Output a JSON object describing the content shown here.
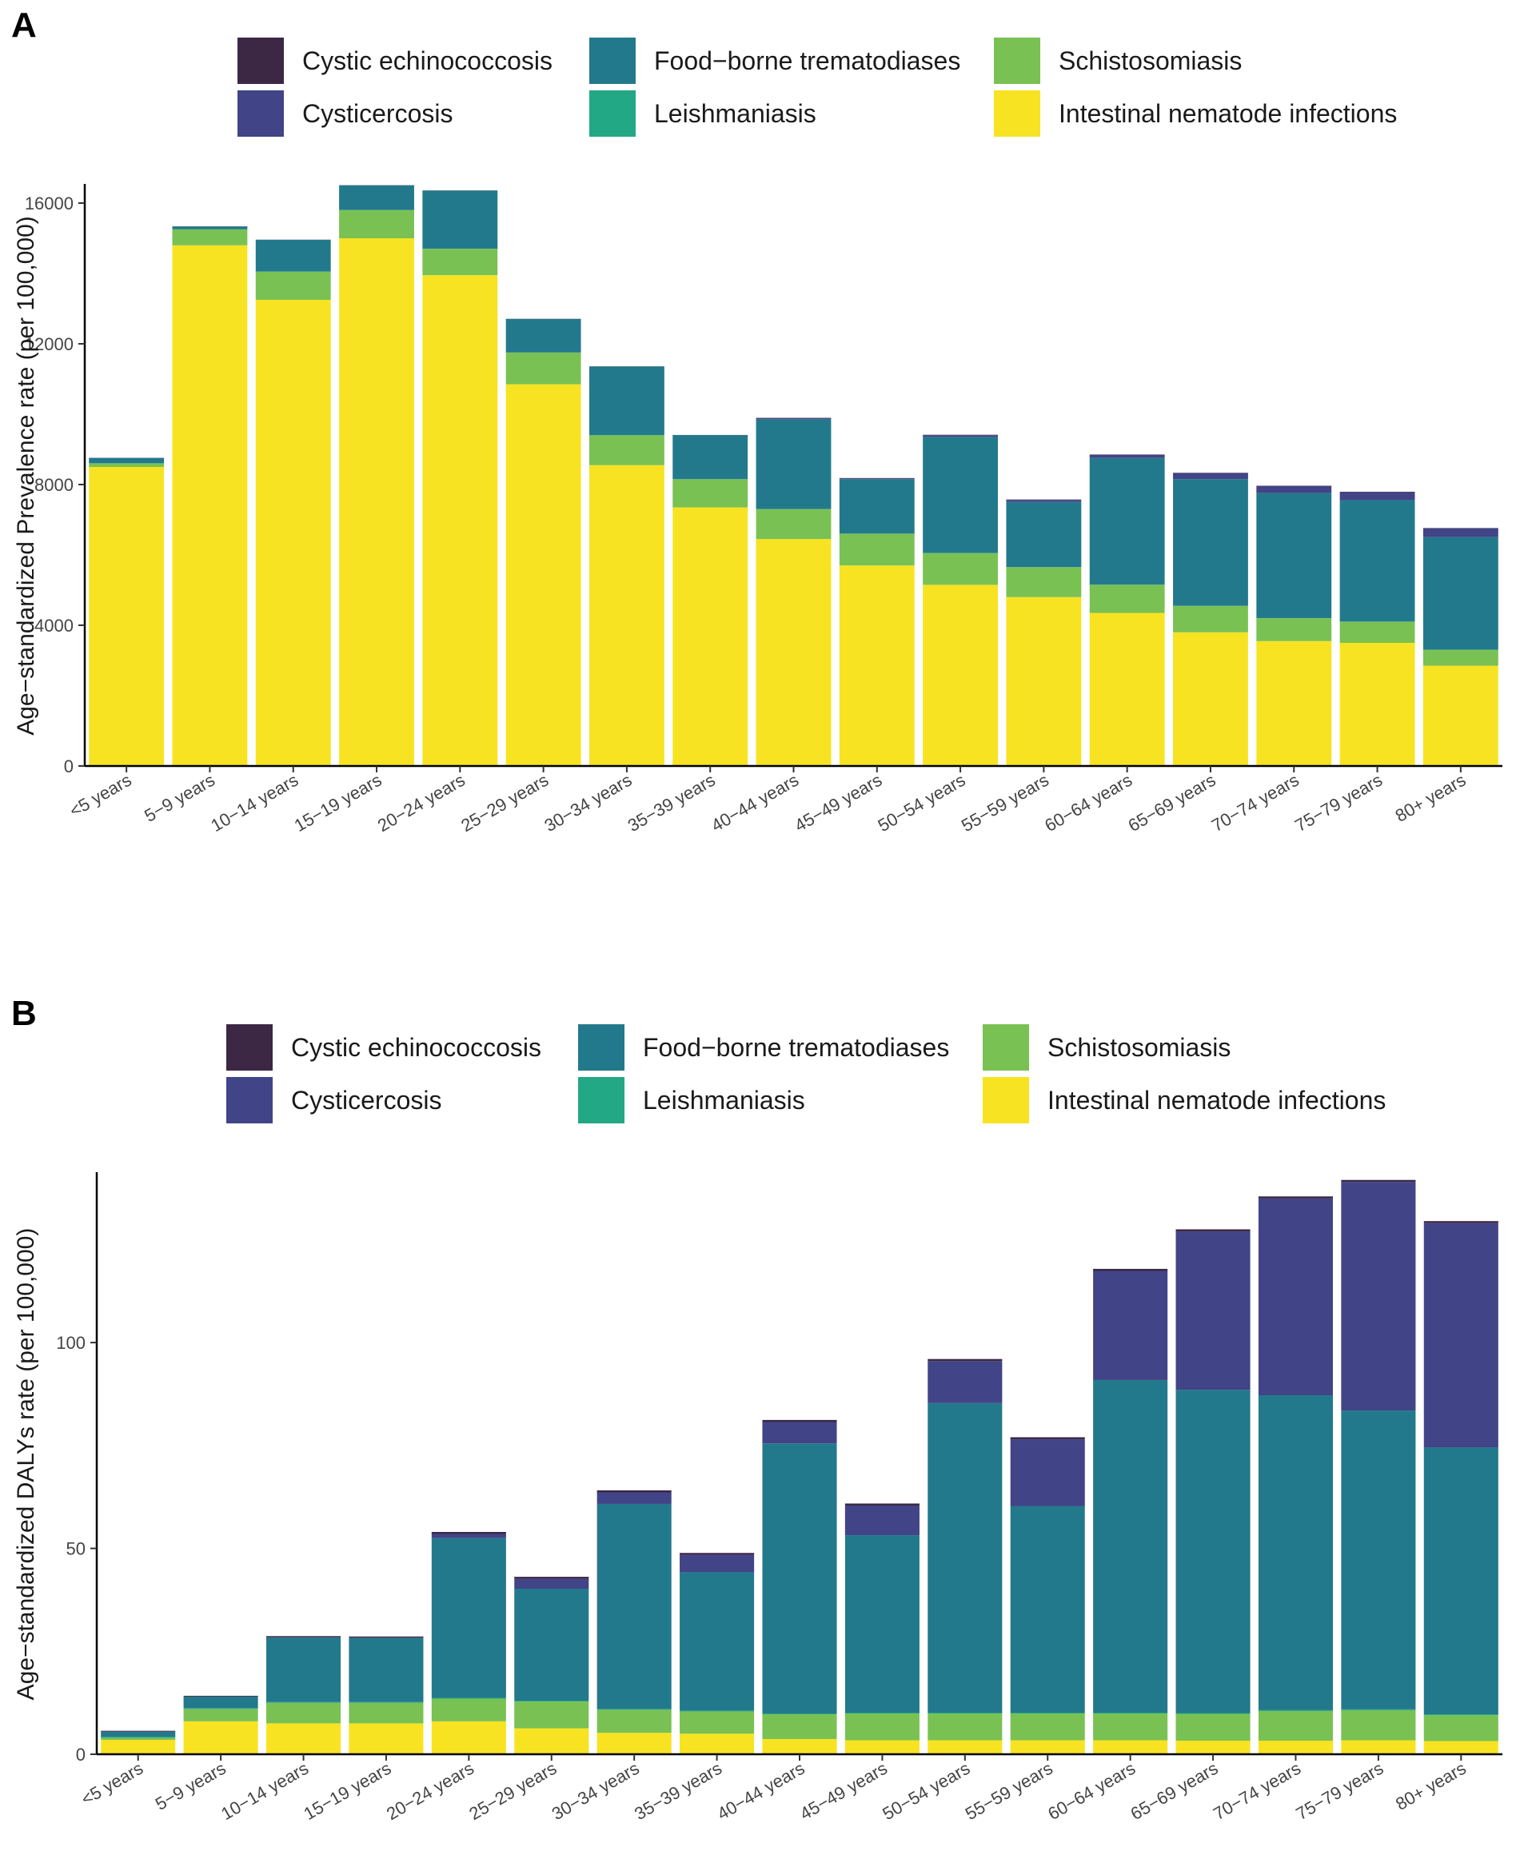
{
  "panels": [
    {
      "label": "A",
      "legend": [
        {
          "name": "Cystic echinococcosis",
          "color": "#3c2745"
        },
        {
          "name": "Cysticercosis",
          "color": "#414487"
        },
        {
          "name": "Food−borne trematodiases",
          "color": "#23798c"
        },
        {
          "name": "Leishmaniasis",
          "color": "#22a884"
        },
        {
          "name": "Schistosomiasis",
          "color": "#7ac153"
        },
        {
          "name": "Intestinal nematode infections",
          "color": "#f7e322"
        }
      ]
    },
    {
      "label": "B",
      "legend": [
        {
          "name": "Cystic echinococcosis",
          "color": "#3c2745"
        },
        {
          "name": "Cysticercosis",
          "color": "#414487"
        },
        {
          "name": "Food−borne trematodiases",
          "color": "#23798c"
        },
        {
          "name": "Leishmaniasis",
          "color": "#22a884"
        },
        {
          "name": "Schistosomiasis",
          "color": "#7ac153"
        },
        {
          "name": "Intestinal nematode infections",
          "color": "#f7e322"
        }
      ]
    }
  ],
  "chart_data": [
    {
      "type": "bar",
      "stacked": true,
      "panel": "A",
      "title": "",
      "xlabel": "",
      "ylabel": "Age−standardized Prevalence rate (per 100,000)",
      "ylim": [
        0,
        16500
      ],
      "yticks": [
        0,
        4000,
        8000,
        12000,
        16000
      ],
      "categories": [
        "<5 years",
        "5−9 years",
        "10−14 years",
        "15−19 years",
        "20−24 years",
        "25−29 years",
        "30−34 years",
        "35−39 years",
        "40−44 years",
        "45−49 years",
        "50−54 years",
        "55−59 years",
        "60−64 years",
        "65−69 years",
        "70−74 years",
        "75−79 years",
        "80+ years"
      ],
      "series": [
        {
          "name": "Intestinal nematode infections",
          "color": "#f7e322",
          "values": [
            8500,
            14800,
            13250,
            15000,
            13950,
            10850,
            8550,
            7350,
            6450,
            5700,
            5150,
            4800,
            4350,
            3800,
            3550,
            3500,
            2850
          ]
        },
        {
          "name": "Schistosomiasis",
          "color": "#7ac153",
          "values": [
            100,
            450,
            800,
            800,
            750,
            900,
            850,
            800,
            850,
            900,
            900,
            850,
            800,
            750,
            650,
            600,
            450
          ]
        },
        {
          "name": "Leishmaniasis",
          "color": "#22a884",
          "values": [
            5,
            5,
            5,
            5,
            5,
            5,
            5,
            5,
            5,
            5,
            5,
            5,
            5,
            5,
            5,
            5,
            5
          ]
        },
        {
          "name": "Food−borne trematodiases",
          "color": "#23798c",
          "values": [
            150,
            80,
            900,
            700,
            1650,
            950,
            1950,
            1250,
            2550,
            1550,
            3300,
            1850,
            3600,
            3600,
            3550,
            3450,
            3200
          ]
        },
        {
          "name": "Cysticercosis",
          "color": "#414487",
          "values": [
            0,
            0,
            0,
            0,
            0,
            0,
            0,
            0,
            30,
            20,
            50,
            60,
            90,
            170,
            200,
            230,
            250
          ]
        },
        {
          "name": "Cystic echinococcosis",
          "color": "#3c2745",
          "values": [
            5,
            5,
            5,
            5,
            5,
            5,
            5,
            5,
            10,
            10,
            10,
            10,
            10,
            10,
            10,
            10,
            10
          ]
        }
      ]
    },
    {
      "type": "bar",
      "stacked": true,
      "panel": "B",
      "title": "",
      "xlabel": "",
      "ylabel": "Age−standardized DALYs rate (per 100,000)",
      "ylim": [
        0,
        141
      ],
      "yticks": [
        0,
        50,
        100
      ],
      "categories": [
        "<5 years",
        "5−9 years",
        "10−14 years",
        "15−19 years",
        "20−24 years",
        "25−29 years",
        "30−34 years",
        "35−39 years",
        "40−44 years",
        "45−49 years",
        "50−54 years",
        "55−59 years",
        "60−64 years",
        "65−69 years",
        "70−74 years",
        "75−79 years",
        "80+ years"
      ],
      "series": [
        {
          "name": "Intestinal nematode infections",
          "color": "#f7e322",
          "values": [
            3.5,
            8,
            7.5,
            7.5,
            8,
            6.3,
            5.2,
            5,
            3.7,
            3.4,
            3.4,
            3.4,
            3.4,
            3.3,
            3.3,
            3.4,
            3.2
          ]
        },
        {
          "name": "Schistosomiasis",
          "color": "#7ac153",
          "values": [
            0.5,
            3,
            5,
            5,
            5.5,
            6.5,
            5.6,
            5.4,
            6,
            6.5,
            6.5,
            6.5,
            6.5,
            6.5,
            7.2,
            7.3,
            6.3
          ]
        },
        {
          "name": "Leishmaniasis",
          "color": "#22a884",
          "values": [
            0.2,
            0.2,
            0.2,
            0.2,
            0.2,
            0.2,
            0.2,
            0.2,
            0.2,
            0.2,
            0.2,
            0.2,
            0.2,
            0.2,
            0.2,
            0.2,
            0.2
          ]
        },
        {
          "name": "Food−borne trematodiases",
          "color": "#23798c",
          "values": [
            1.3,
            2.8,
            15.7,
            15.6,
            38.8,
            27.2,
            49.8,
            33.6,
            65.6,
            43.1,
            75.2,
            50.2,
            80.8,
            78.5,
            76.5,
            72.6,
            64.8
          ]
        },
        {
          "name": "Cysticercosis",
          "color": "#414487",
          "values": [
            0,
            0,
            0,
            0,
            1,
            2.4,
            2.8,
            4.2,
            5.2,
            7.2,
            10.2,
            16.2,
            26.5,
            38.5,
            47.8,
            55.5,
            54.5
          ]
        },
        {
          "name": "Cystic echinococcosis",
          "color": "#3c2745",
          "values": [
            0.2,
            0.2,
            0.3,
            0.3,
            0.5,
            0.5,
            0.5,
            0.5,
            0.5,
            0.5,
            0.5,
            0.5,
            0.5,
            0.5,
            0.5,
            0.5,
            0.5
          ]
        }
      ]
    }
  ]
}
